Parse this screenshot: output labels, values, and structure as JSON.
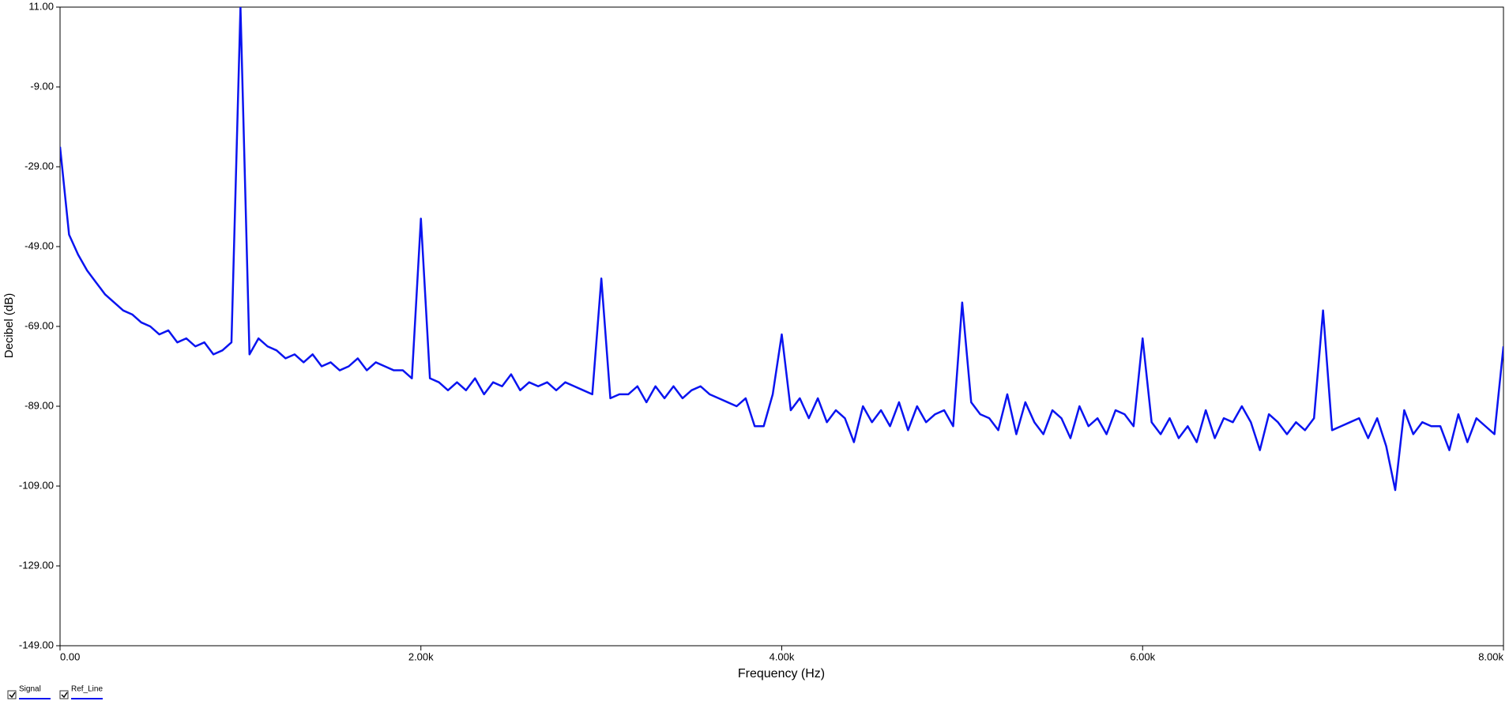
{
  "chart_data": {
    "type": "line",
    "x_label": "Frequency (Hz)",
    "y_label": "Decibel (dB)",
    "x": [
      0,
      50,
      100,
      150,
      200,
      250,
      300,
      350,
      400,
      450,
      500,
      550,
      600,
      650,
      700,
      750,
      800,
      850,
      900,
      950,
      1000,
      1050,
      1100,
      1150,
      1200,
      1250,
      1300,
      1350,
      1400,
      1450,
      1500,
      1550,
      1600,
      1650,
      1700,
      1750,
      1800,
      1850,
      1900,
      1950,
      2000,
      2050,
      2100,
      2150,
      2200,
      2250,
      2300,
      2350,
      2400,
      2450,
      2500,
      2550,
      2600,
      2650,
      2700,
      2750,
      2800,
      2850,
      2900,
      2950,
      3000,
      3050,
      3100,
      3150,
      3200,
      3250,
      3300,
      3350,
      3400,
      3450,
      3500,
      3550,
      3600,
      3650,
      3700,
      3750,
      3800,
      3850,
      3900,
      3950,
      4000,
      4050,
      4100,
      4150,
      4200,
      4250,
      4300,
      4350,
      4400,
      4450,
      4500,
      4550,
      4600,
      4650,
      4700,
      4750,
      4800,
      4850,
      4900,
      4950,
      5000,
      5050,
      5100,
      5150,
      5200,
      5250,
      5300,
      5350,
      5400,
      5450,
      5500,
      5550,
      5600,
      5650,
      5700,
      5750,
      5800,
      5850,
      5900,
      5950,
      6000,
      6050,
      6100,
      6150,
      6200,
      6250,
      6300,
      6350,
      6400,
      6450,
      6500,
      6550,
      6600,
      6650,
      6700,
      6750,
      6800,
      6850,
      6900,
      6950,
      7000,
      7050,
      7100,
      7150,
      7200,
      7250,
      7300,
      7350,
      7400,
      7450,
      7500,
      7550,
      7600,
      7650,
      7700,
      7750,
      7800,
      7850,
      7900,
      7950,
      8000
    ],
    "series": [
      {
        "name": "Signal",
        "color": "#0a14f0",
        "values": [
          -24,
          -46,
          -51,
          -55,
          -58,
          -61,
          -63,
          -65,
          -66,
          -68,
          -69,
          -71,
          -70,
          -73,
          -72,
          -74,
          -73,
          -76,
          -75,
          -73,
          11,
          -76,
          -72,
          -74,
          -75,
          -77,
          -76,
          -78,
          -76,
          -79,
          -78,
          -80,
          -79,
          -77,
          -80,
          -78,
          -79,
          -80,
          -80,
          -82,
          -42,
          -82,
          -83,
          -85,
          -83,
          -85,
          -82,
          -86,
          -83,
          -84,
          -81,
          -85,
          -83,
          -84,
          -83,
          -85,
          -83,
          -84,
          -85,
          -86,
          -57,
          -87,
          -86,
          -86,
          -84,
          -88,
          -84,
          -87,
          -84,
          -87,
          -85,
          -84,
          -86,
          -87,
          -88,
          -89,
          -87,
          -94,
          -94,
          -86,
          -71,
          -90,
          -87,
          -92,
          -87,
          -93,
          -90,
          -92,
          -98,
          -89,
          -93,
          -90,
          -94,
          -88,
          -95,
          -89,
          -93,
          -91,
          -90,
          -94,
          -63,
          -88,
          -91,
          -92,
          -95,
          -86,
          -96,
          -88,
          -93,
          -96,
          -90,
          -92,
          -97,
          -89,
          -94,
          -92,
          -96,
          -90,
          -91,
          -94,
          -72,
          -93,
          -96,
          -92,
          -97,
          -94,
          -98,
          -90,
          -97,
          -92,
          -93,
          -89,
          -93,
          -100,
          -91,
          -93,
          -96,
          -93,
          -95,
          -92,
          -65,
          -95,
          -94,
          -93,
          -92,
          -97,
          -92,
          -99,
          -110,
          -90,
          -96,
          -93,
          -94,
          -94,
          -100,
          -91,
          -98,
          -92,
          -94,
          -96,
          -74
        ]
      }
    ],
    "legend": [
      {
        "name": "Signal",
        "color": "#0a14f0"
      },
      {
        "name": "Ref_Line",
        "color": "#0a14f0"
      }
    ],
    "xlim": [
      0,
      8000
    ],
    "xticks": [
      {
        "value": 0,
        "label": "0.00"
      },
      {
        "value": 2000,
        "label": "2.00k"
      },
      {
        "value": 4000,
        "label": "4.00k"
      },
      {
        "value": 6000,
        "label": "6.00k"
      },
      {
        "value": 8000,
        "label": "8.00k"
      }
    ],
    "ylim": [
      -149,
      11
    ],
    "yticks": [
      {
        "value": 11,
        "label": "11.00"
      },
      {
        "value": -9,
        "label": "-9.00"
      },
      {
        "value": -29,
        "label": "-29.00"
      },
      {
        "value": -49,
        "label": "-49.00"
      },
      {
        "value": -69,
        "label": "-69.00"
      },
      {
        "value": -89,
        "label": "-89.00"
      },
      {
        "value": -109,
        "label": "-109.00"
      },
      {
        "value": -129,
        "label": "-129.00"
      },
      {
        "value": -149,
        "label": "-149.00"
      }
    ],
    "grid": false
  }
}
